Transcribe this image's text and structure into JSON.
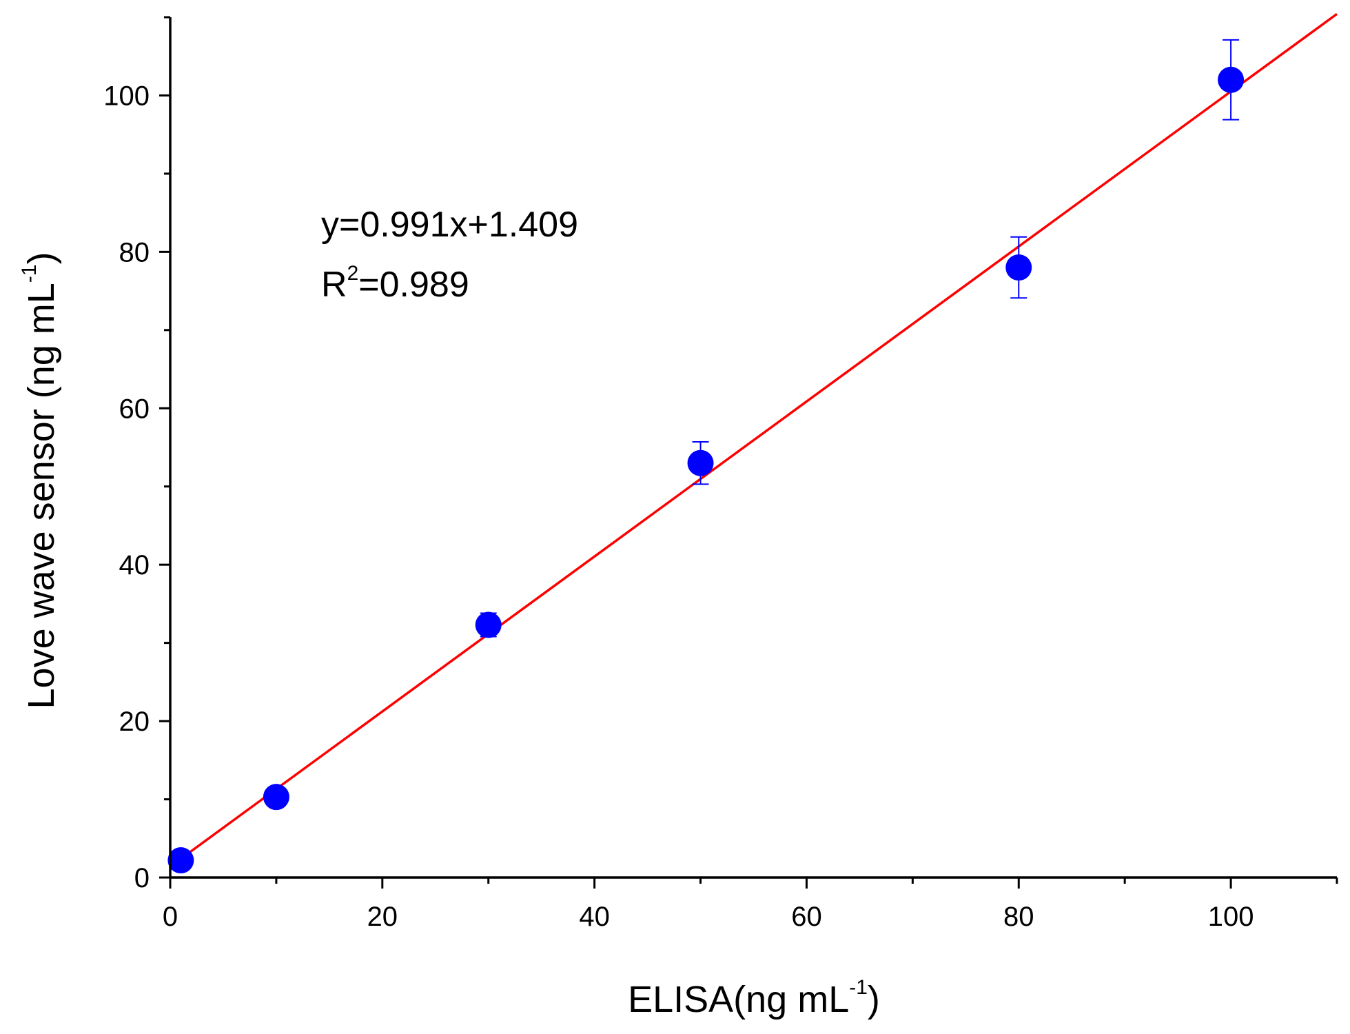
{
  "chart_data": {
    "type": "scatter",
    "x_label": {
      "main": "ELISA(ng mL",
      "sup": "-1",
      "tail": ")"
    },
    "y_label": {
      "main": "Love wave sensor (ng mL",
      "sup": "-1",
      "tail": ")"
    },
    "xlim": [
      0,
      110
    ],
    "ylim": [
      0,
      110
    ],
    "x_ticks": [
      0,
      20,
      40,
      60,
      80,
      100
    ],
    "x_minor_ticks": [
      10,
      30,
      50,
      70,
      90,
      110
    ],
    "y_ticks": [
      0,
      20,
      40,
      60,
      80,
      100
    ],
    "y_minor_ticks": [
      10,
      30,
      50,
      70,
      90,
      110
    ],
    "series": [
      {
        "marker": "circle",
        "color": "#0000ff",
        "points": [
          {
            "x": 1,
            "y": 2.2,
            "err": 0.5
          },
          {
            "x": 10,
            "y": 10.3,
            "err": 0.6
          },
          {
            "x": 30,
            "y": 32.3,
            "err": 1.5
          },
          {
            "x": 50,
            "y": 53.0,
            "err": 2.7
          },
          {
            "x": 80,
            "y": 78.0,
            "err": 3.9
          },
          {
            "x": 100,
            "y": 102.0,
            "err": 5.1
          }
        ]
      }
    ],
    "fit_line": {
      "slope": 0.991,
      "intercept": 1.409,
      "x_range": [
        0,
        110
      ],
      "color": "#ff0000"
    },
    "annotation": {
      "equation": "y=0.991x+1.409",
      "r2_prefix": "R",
      "r2_sup": "2",
      "r2_value": "=0.989"
    },
    "grid": false,
    "legend": "none"
  }
}
